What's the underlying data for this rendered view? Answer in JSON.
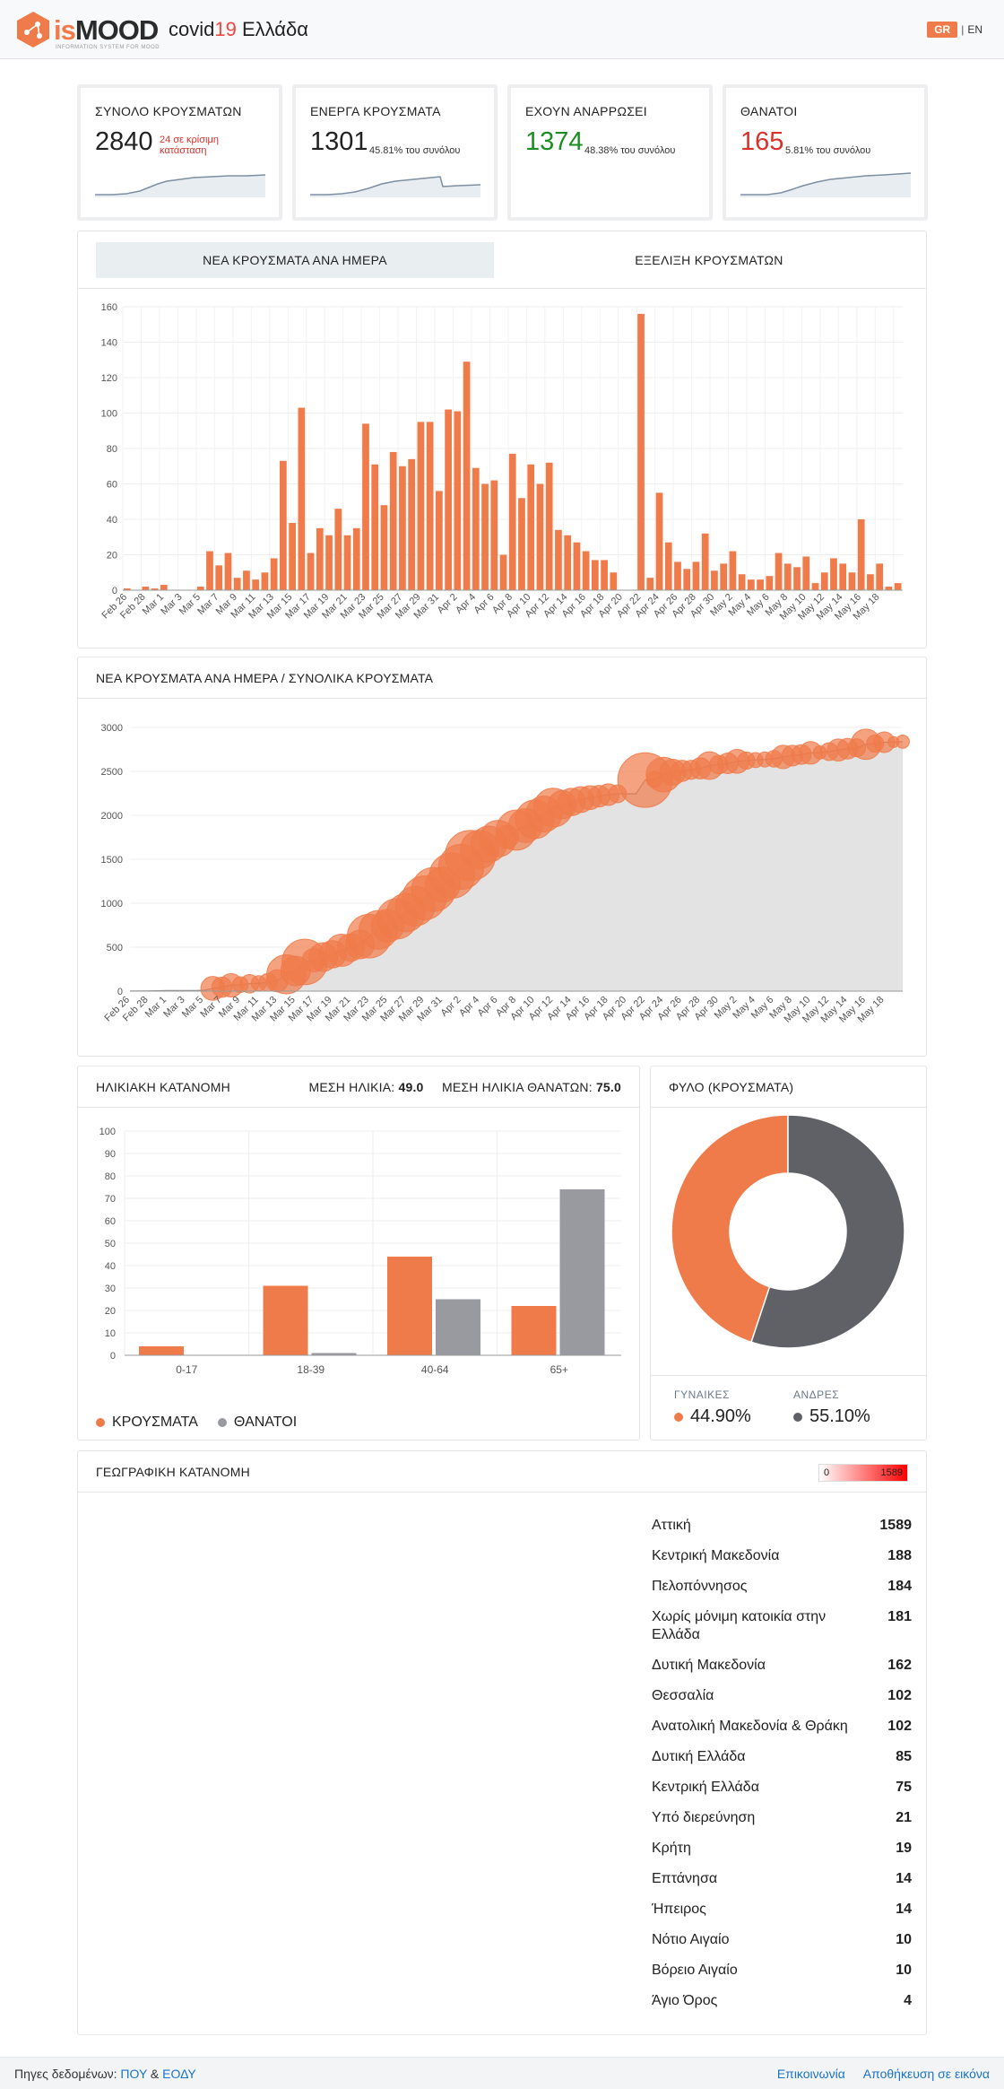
{
  "header": {
    "logo_is": "is",
    "logo_mood": "MOOD",
    "logo_sub": "INFORMATION SYSTEM FOR MOOD",
    "title_prefix": "covid",
    "title_num": "19",
    "title_suffix": " Ελλάδα",
    "lang_gr": "GR",
    "lang_sep": "|",
    "lang_en": "EN"
  },
  "stats": [
    {
      "label": "ΣΥΝΟΛΟ ΚΡΟΥΣΜΑΤΩΝ",
      "value": "2840",
      "note": "24 σε κρίσιμη κατάσταση"
    },
    {
      "label": "ΕΝΕΡΓΑ ΚΡΟΥΣΜΑΤΑ",
      "value": "1301",
      "note": "45.81% του συνόλου"
    },
    {
      "label": "ΕΧΟΥΝ ΑΝΑΡΡΩΣΕΙ",
      "value": "1374",
      "note": "48.38% του συνόλου"
    },
    {
      "label": "ΘΑΝΑΤΟΙ",
      "value": "165",
      "note": "5.81% του συνόλου"
    }
  ],
  "tabs": [
    "ΝΕΑ ΚΡΟΥΣΜΑΤΑ ΑΝΑ ΗΜΕΡΑ",
    "ΕΞΕΛΙΞΗ ΚΡΟΥΣΜΑΤΩΝ"
  ],
  "colors": {
    "accent": "#f07b4a",
    "deaths": "#999aa0",
    "men": "#5f6167",
    "green": "#1c8c24",
    "red": "#d9302b",
    "link": "#1a73c8"
  },
  "chart_data": [
    {
      "type": "bar",
      "title": "ΝΕΑ ΚΡΟΥΣΜΑΤΑ ΑΝΑ ΗΜΕΡΑ",
      "ylim": [
        0,
        160
      ],
      "yticks": [
        0,
        20,
        40,
        60,
        80,
        100,
        120,
        140,
        160
      ],
      "xtick_labels": [
        "Feb 26",
        "Feb 28",
        "Mar 1",
        "Mar 3",
        "Mar 5",
        "Mar 7",
        "Mar 9",
        "Mar 11",
        "Mar 13",
        "Mar 15",
        "Mar 17",
        "Mar 19",
        "Mar 21",
        "Mar 23",
        "Mar 25",
        "Mar 27",
        "Mar 29",
        "Mar 31",
        "Apr 2",
        "Apr 4",
        "Apr 6",
        "Apr 8",
        "Apr 10",
        "Apr 12",
        "Apr 14",
        "Apr 16",
        "Apr 18",
        "Apr 20",
        "Apr 22",
        "Apr 24",
        "Apr 26",
        "Apr 28",
        "Apr 30",
        "May 2",
        "May 4",
        "May 6",
        "May 8",
        "May 10",
        "May 12",
        "May 14",
        "May 16",
        "May 18"
      ],
      "values": [
        1,
        0,
        2,
        1,
        3,
        0,
        0,
        0,
        2,
        22,
        14,
        21,
        7,
        11,
        6,
        10,
        18,
        73,
        38,
        103,
        21,
        35,
        31,
        46,
        31,
        35,
        94,
        71,
        48,
        78,
        70,
        74,
        95,
        95,
        56,
        102,
        101,
        129,
        69,
        60,
        62,
        20,
        77,
        52,
        71,
        60,
        72,
        34,
        31,
        27,
        22,
        17,
        17,
        10,
        0,
        0,
        156,
        7,
        55,
        27,
        16,
        12,
        16,
        32,
        11,
        15,
        22,
        9,
        6,
        6,
        8,
        21,
        15,
        13,
        19,
        4,
        10,
        18,
        15,
        10,
        40,
        9,
        15,
        2,
        4
      ],
      "grid": true
    },
    {
      "type": "scatter",
      "title": "ΝΕΑ ΚΡΟΥΣΜΑΤΑ ΑΝΑ ΗΜΕΡΑ / ΣΥΝΟΛΙΚΑ ΚΡΟΥΣΜΑΤΑ",
      "ylim": [
        0,
        3000
      ],
      "yticks": [
        0,
        500,
        1000,
        1500,
        2000,
        2500,
        3000
      ],
      "xtick_labels": [
        "Feb 26",
        "Feb 28",
        "Mar 1",
        "Mar 3",
        "Mar 5",
        "Mar 7",
        "Mar 9",
        "Mar 11",
        "Mar 13",
        "Mar 15",
        "Mar 17",
        "Mar 19",
        "Mar 21",
        "Mar 23",
        "Mar 25",
        "Mar 27",
        "Mar 29",
        "Mar 31",
        "Apr 2",
        "Apr 4",
        "Apr 6",
        "Apr 8",
        "Apr 10",
        "Apr 12",
        "Apr 14",
        "Apr 16",
        "Apr 18",
        "Apr 20",
        "Apr 22",
        "Apr 24",
        "Apr 26",
        "Apr 28",
        "Apr 30",
        "May 2",
        "May 4",
        "May 6",
        "May 8",
        "May 10",
        "May 12",
        "May 14",
        "May 16",
        "May 18"
      ],
      "description": "cumulative cases (area) with bubbles sized by new cases per day",
      "grid": true
    },
    {
      "type": "bar",
      "title": "ΗΛΙΚΙΑΚΗ ΚΑΤΑΝΟΜΗ",
      "categories": [
        "0-17",
        "18-39",
        "40-64",
        "65+"
      ],
      "series": [
        {
          "name": "ΚΡΟΥΣΜΑΤΑ",
          "values": [
            4,
            31,
            44,
            22
          ]
        },
        {
          "name": "ΘΑΝΑΤΟΙ",
          "values": [
            0,
            1,
            25,
            74
          ]
        }
      ],
      "ylim": [
        0,
        100
      ],
      "yticks": [
        0,
        10,
        20,
        30,
        40,
        50,
        60,
        70,
        80,
        90,
        100
      ],
      "legend": "bottom-left"
    },
    {
      "type": "pie",
      "title": "ΦΥΛΟ (ΚΡΟΥΣΜΑΤΑ)",
      "labels": [
        "ΓΥΝΑΙΚΕΣ",
        "ΑΝΔΡΕΣ"
      ],
      "values": [
        44.9,
        55.1
      ],
      "display": [
        "44.90%",
        "55.10%"
      ]
    }
  ],
  "age": {
    "mean_label": "ΜΕΣΗ ΗΛΙΚΙΑ:",
    "mean_value": "49.0",
    "mean_death_label": "ΜΕΣΗ ΗΛΙΚΙΑ ΘΑΝΑΤΩΝ:",
    "mean_death_value": "75.0"
  },
  "geo": {
    "title": "ΓΕΩΓΡΑΦΙΚΗ ΚΑΤΑΝΟΜΗ",
    "scale_min": "0",
    "scale_max": "1589",
    "regions": [
      {
        "name": "Αττική",
        "value": "1589"
      },
      {
        "name": "Κεντρική Μακεδονία",
        "value": "188"
      },
      {
        "name": "Πελοπόννησος",
        "value": "184"
      },
      {
        "name": "Χωρίς μόνιμη κατοικία στην Ελλάδα",
        "value": "181"
      },
      {
        "name": "Δυτική Μακεδονία",
        "value": "162"
      },
      {
        "name": "Θεσσαλία",
        "value": "102"
      },
      {
        "name": "Ανατολική Μακεδονία & Θράκη",
        "value": "102"
      },
      {
        "name": "Δυτική Ελλάδα",
        "value": "85"
      },
      {
        "name": "Κεντρική Ελλάδα",
        "value": "75"
      },
      {
        "name": "Υπό διερεύνηση",
        "value": "21"
      },
      {
        "name": "Κρήτη",
        "value": "19"
      },
      {
        "name": "Επτάνησα",
        "value": "14"
      },
      {
        "name": "Ήπειρος",
        "value": "14"
      },
      {
        "name": "Νότιο Αιγαίο",
        "value": "10"
      },
      {
        "name": "Βόρειο Αιγαίο",
        "value": "10"
      },
      {
        "name": "Άγιο Όρος",
        "value": "4"
      }
    ]
  },
  "footer": {
    "sources_prefix": "Πηγες δεδομένων: ",
    "source1": "ΠΟΥ",
    "and": " & ",
    "source2": "ΕΟΔΥ",
    "contact": "Επικοινωνία",
    "save": "Αποθήκευση σε εικόνα"
  }
}
